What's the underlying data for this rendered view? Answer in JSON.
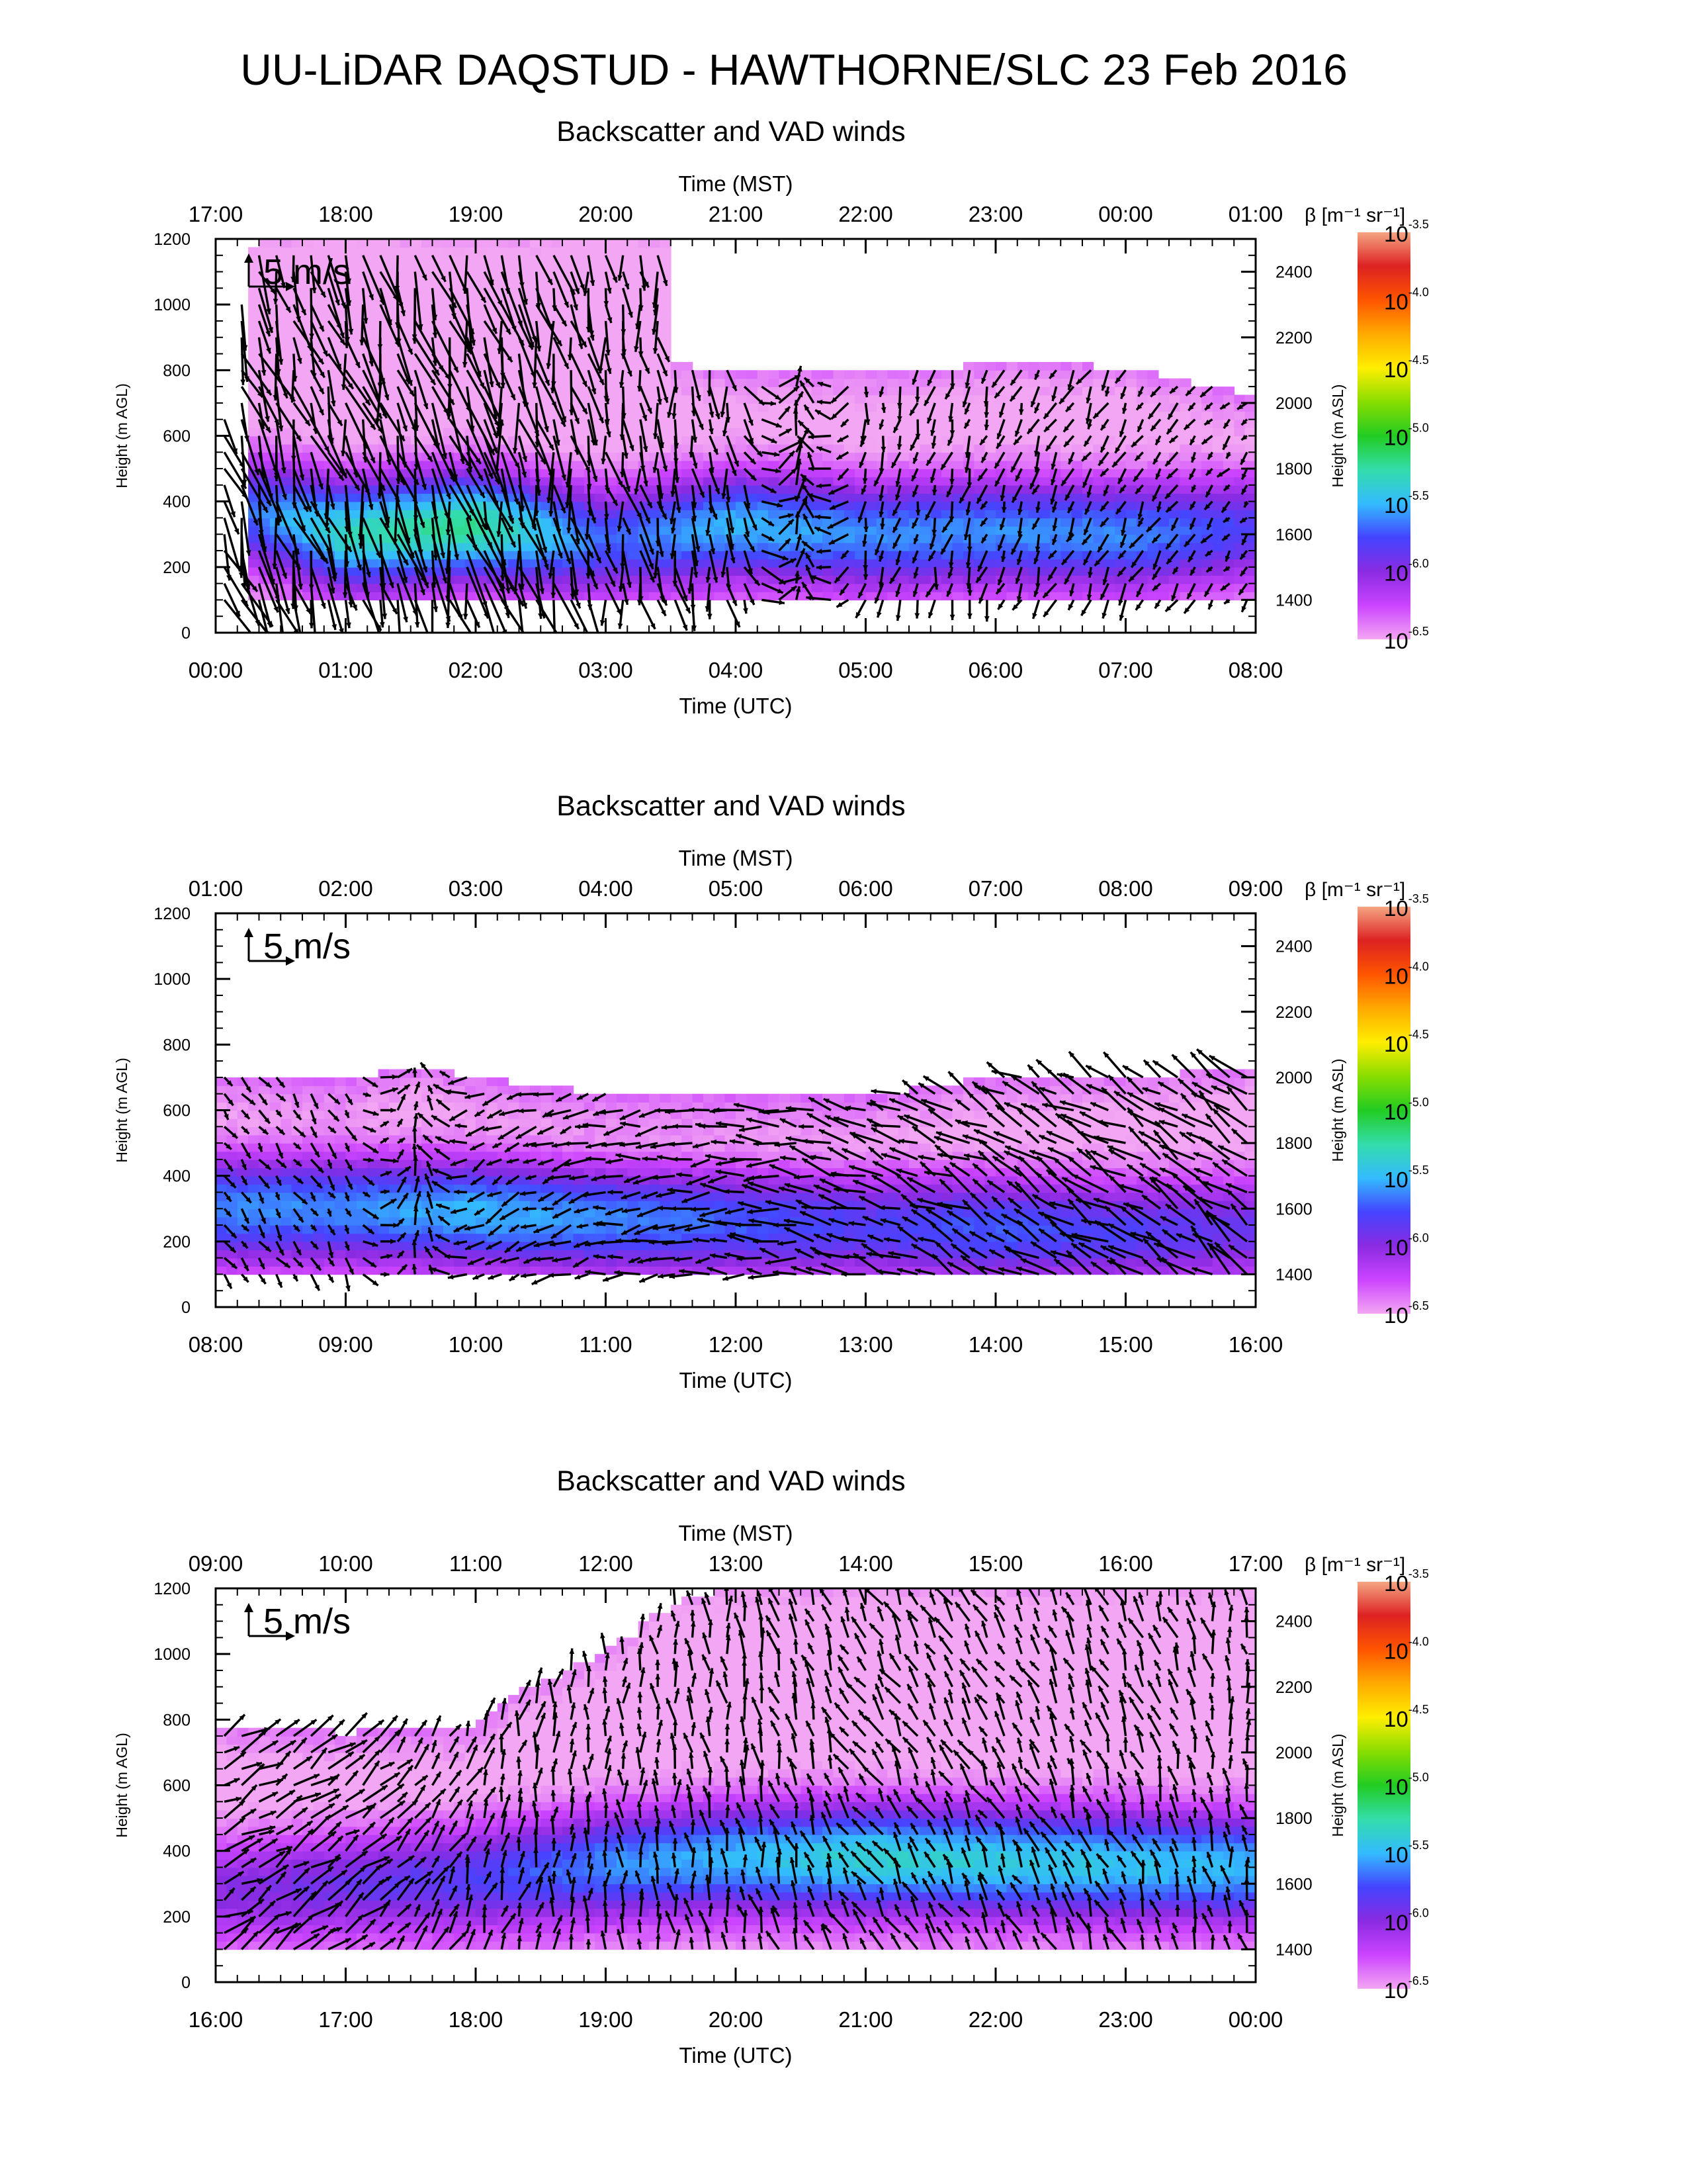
{
  "title": "UU-LiDAR DAQSTUD - HAWTHORNE/SLC 23 Feb 2016",
  "colors": {
    "background": "#ffffff",
    "axes": "#000000",
    "arrows": "#000000",
    "colorbar": [
      "#f3a6f3",
      "#cc44ff",
      "#8a2be2",
      "#4444ff",
      "#33bbff",
      "#33ddaa",
      "#22cc22",
      "#88dd00",
      "#ffee00",
      "#ffaa00",
      "#ff5500",
      "#dd2222",
      "#f4a582"
    ]
  },
  "chart_data": [
    {
      "type": "heatmap",
      "title": "Backscatter and VAD winds",
      "top_axis_title": "Time (MST)",
      "top_ticks": [
        "17:00",
        "18:00",
        "19:00",
        "20:00",
        "21:00",
        "22:00",
        "23:00",
        "00:00",
        "01:00"
      ],
      "xlabel": "Time (UTC)",
      "bottom_ticks": [
        "00:00",
        "01:00",
        "02:00",
        "03:00",
        "04:00",
        "05:00",
        "06:00",
        "07:00",
        "08:00"
      ],
      "ylabel_left": "Height (m AGL)",
      "left_ticks": [
        "0",
        "200",
        "400",
        "600",
        "800",
        "1000",
        "1200"
      ],
      "ylabel_right": "Height (m ASL)",
      "right_ticks": [
        "1400",
        "1600",
        "1800",
        "2000",
        "2200",
        "2400"
      ],
      "xlim_utc_hours": [
        0,
        8
      ],
      "ylim_m_agl": [
        0,
        1200
      ],
      "scale_arrow_label": "5 m/s",
      "colorbar": {
        "title": "β [m⁻¹ sr⁻¹]",
        "ticks": [
          {
            "base": "10",
            "exp": "-3.5"
          },
          {
            "base": "10",
            "exp": "-4.0"
          },
          {
            "base": "10",
            "exp": "-4.5"
          },
          {
            "base": "10",
            "exp": "-5.0"
          },
          {
            "base": "10",
            "exp": "-5.5"
          },
          {
            "base": "10",
            "exp": "-6.0"
          },
          {
            "base": "10",
            "exp": "-6.5"
          }
        ],
        "log10_range": [
          -6.5,
          -3.5
        ]
      },
      "boundary_layer_top_m": [
        [
          0,
          620
        ],
        [
          0.3,
          1200
        ],
        [
          1,
          1200
        ],
        [
          2,
          1200
        ],
        [
          3,
          1200
        ],
        [
          3.5,
          1200
        ],
        [
          3.5,
          820
        ],
        [
          4,
          800
        ],
        [
          5,
          790
        ],
        [
          6,
          820
        ],
        [
          7,
          810
        ],
        [
          8,
          720
        ]
      ],
      "feature_core_m": [
        400,
        300,
        330,
        280,
        330,
        300,
        310,
        300,
        320
      ],
      "feature_strength_log10": [
        -5.8,
        -5.3,
        -5.2,
        -5.7,
        -5.5,
        -5.6,
        -5.6,
        -5.6,
        -5.8
      ],
      "wind_speed_m_s": [
        14,
        12,
        15,
        9,
        7,
        5,
        5,
        5,
        3
      ],
      "wind_dir_deg": [
        340,
        345,
        345,
        350,
        355,
        10,
        20,
        30,
        40
      ]
    },
    {
      "type": "heatmap",
      "title": "Backscatter and VAD winds",
      "top_axis_title": "Time (MST)",
      "top_ticks": [
        "01:00",
        "02:00",
        "03:00",
        "04:00",
        "05:00",
        "06:00",
        "07:00",
        "08:00",
        "09:00"
      ],
      "xlabel": "Time (UTC)",
      "bottom_ticks": [
        "08:00",
        "09:00",
        "10:00",
        "11:00",
        "12:00",
        "13:00",
        "14:00",
        "15:00",
        "16:00"
      ],
      "ylabel_left": "Height (m AGL)",
      "left_ticks": [
        "0",
        "200",
        "400",
        "600",
        "800",
        "1000",
        "1200"
      ],
      "ylabel_right": "Height (m ASL)",
      "right_ticks": [
        "1400",
        "1600",
        "1800",
        "2000",
        "2200",
        "2400"
      ],
      "xlim_utc_hours": [
        8,
        16
      ],
      "ylim_m_agl": [
        0,
        1200
      ],
      "scale_arrow_label": "5 m/s",
      "colorbar": {
        "title": "β [m⁻¹ sr⁻¹]",
        "ticks": [
          {
            "base": "10",
            "exp": "-3.5"
          },
          {
            "base": "10",
            "exp": "-4.0"
          },
          {
            "base": "10",
            "exp": "-4.5"
          },
          {
            "base": "10",
            "exp": "-5.0"
          },
          {
            "base": "10",
            "exp": "-5.5"
          },
          {
            "base": "10",
            "exp": "-6.0"
          },
          {
            "base": "10",
            "exp": "-6.5"
          }
        ],
        "log10_range": [
          -6.5,
          -3.5
        ]
      },
      "boundary_layer_top_m": [
        [
          8,
          710
        ],
        [
          9,
          690
        ],
        [
          9.5,
          740
        ],
        [
          10,
          700
        ],
        [
          11,
          650
        ],
        [
          12,
          640
        ],
        [
          13,
          640
        ],
        [
          14,
          700
        ],
        [
          15,
          700
        ],
        [
          16,
          730
        ]
      ],
      "feature_core_m": [
        300,
        300,
        290,
        270,
        260,
        250,
        240,
        230,
        240
      ],
      "feature_strength_log10": [
        -5.6,
        -5.6,
        -5.5,
        -5.6,
        -5.7,
        -5.8,
        -5.7,
        -5.8,
        -5.9
      ],
      "wind_speed_m_s": [
        4,
        4,
        5,
        6,
        7,
        8,
        8,
        9,
        10
      ],
      "wind_dir_deg": [
        320,
        330,
        60,
        80,
        90,
        110,
        120,
        120,
        130
      ]
    },
    {
      "type": "heatmap",
      "title": "Backscatter and VAD winds",
      "top_axis_title": "Time (MST)",
      "top_ticks": [
        "09:00",
        "10:00",
        "11:00",
        "12:00",
        "13:00",
        "14:00",
        "15:00",
        "16:00",
        "17:00"
      ],
      "xlabel": "Time (UTC)",
      "bottom_ticks": [
        "16:00",
        "17:00",
        "18:00",
        "19:00",
        "20:00",
        "21:00",
        "22:00",
        "23:00",
        "00:00"
      ],
      "ylabel_left": "Height (m AGL)",
      "left_ticks": [
        "0",
        "200",
        "400",
        "600",
        "800",
        "1000",
        "1200"
      ],
      "ylabel_right": "Height (m ASL)",
      "right_ticks": [
        "1400",
        "1600",
        "1800",
        "2000",
        "2200",
        "2400"
      ],
      "xlim_utc_hours": [
        16,
        24
      ],
      "ylim_m_agl": [
        0,
        1200
      ],
      "scale_arrow_label": "5 m/s",
      "colorbar": {
        "title": "β [m⁻¹ sr⁻¹]",
        "ticks": [
          {
            "base": "10",
            "exp": "-3.5"
          },
          {
            "base": "10",
            "exp": "-4.0"
          },
          {
            "base": "10",
            "exp": "-4.5"
          },
          {
            "base": "10",
            "exp": "-5.0"
          },
          {
            "base": "10",
            "exp": "-5.5"
          },
          {
            "base": "10",
            "exp": "-6.0"
          },
          {
            "base": "10",
            "exp": "-6.5"
          }
        ],
        "log10_range": [
          -6.5,
          -3.5
        ]
      },
      "boundary_layer_top_m": [
        [
          16,
          780
        ],
        [
          17,
          760
        ],
        [
          18,
          780
        ],
        [
          18.3,
          880
        ],
        [
          19,
          1000
        ],
        [
          19.5,
          1150
        ],
        [
          20,
          1200
        ],
        [
          21,
          1200
        ],
        [
          22,
          1200
        ],
        [
          23,
          1200
        ],
        [
          24,
          1200
        ]
      ],
      "feature_core_m": [
        280,
        300,
        320,
        360,
        380,
        380,
        370,
        360,
        350
      ],
      "feature_strength_log10": [
        -6.0,
        -5.9,
        -5.8,
        -5.6,
        -5.5,
        -5.35,
        -5.4,
        -5.45,
        -5.5
      ],
      "wind_speed_m_s": [
        8,
        7,
        6,
        5,
        6,
        6,
        6,
        6,
        5
      ],
      "wind_dir_deg": [
        240,
        235,
        200,
        180,
        170,
        150,
        150,
        160,
        170
      ]
    }
  ]
}
